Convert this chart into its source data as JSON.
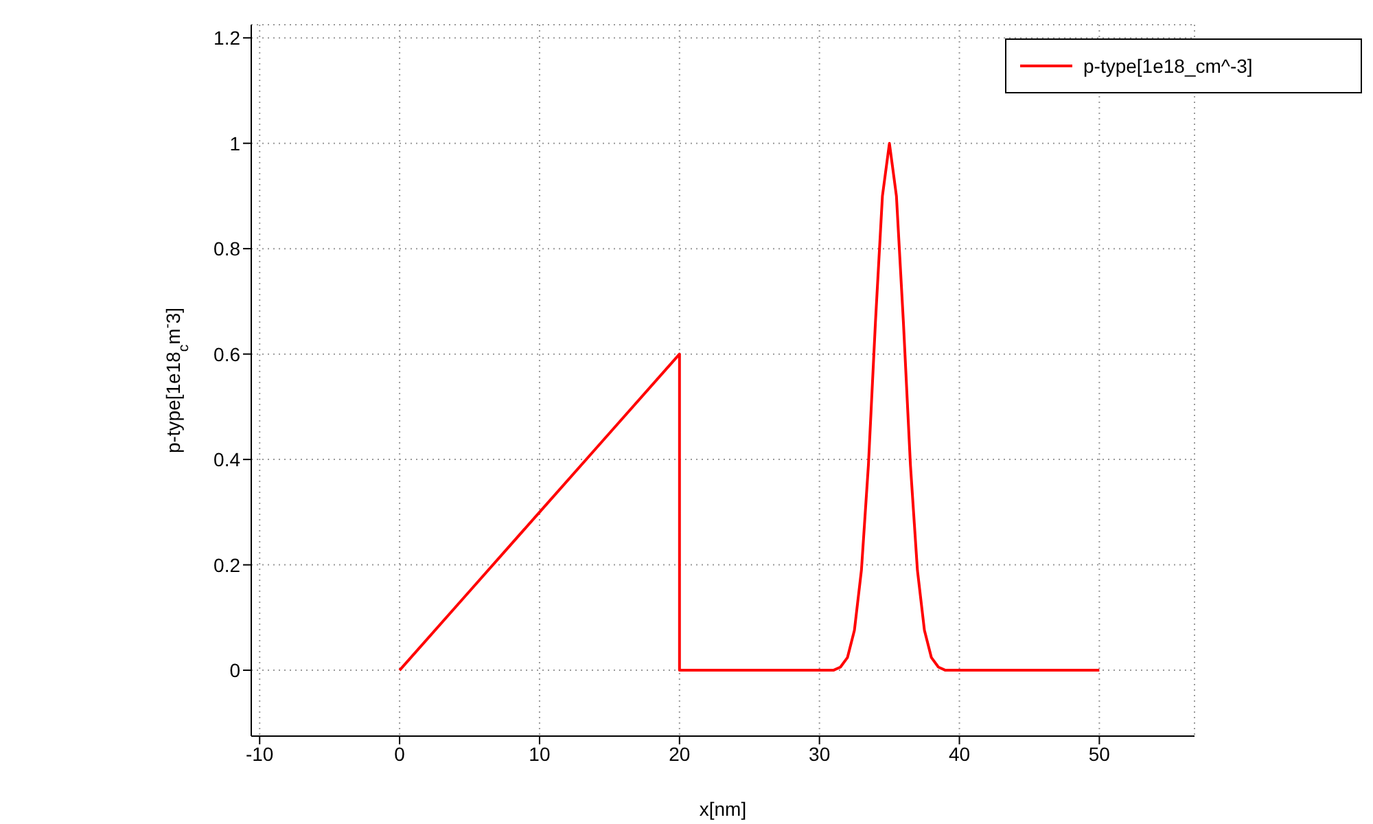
{
  "chart_data": {
    "type": "line",
    "xlabel": "x[nm]",
    "ylabel": "p-type[1e18$_{c}$m$^{-}$3]",
    "series": [
      {
        "name": "p-type[1e18_cm^-3]",
        "color": "#ff0000",
        "x": [
          0,
          5,
          10,
          15,
          20,
          20,
          25,
          30,
          31,
          31.5,
          32,
          32.5,
          33,
          33.5,
          34,
          34.5,
          35,
          35.5,
          36,
          36.5,
          37,
          37.5,
          38,
          38.5,
          39,
          40,
          45,
          50
        ],
        "values": [
          0,
          0.15,
          0.3,
          0.45,
          0.6,
          0,
          0,
          0,
          0,
          0.006,
          0.024,
          0.076,
          0.19,
          0.39,
          0.66,
          0.9,
          1,
          0.9,
          0.66,
          0.39,
          0.19,
          0.076,
          0.024,
          0.006,
          0,
          0,
          0,
          0
        ]
      }
    ],
    "xlim": [
      -10.6,
      56.8
    ],
    "xticks": [
      -10,
      0,
      10,
      20,
      30,
      40,
      50
    ],
    "ylim": [
      -0.125,
      1.225
    ],
    "yticks": [
      0,
      0.2,
      0.4,
      0.6,
      0.8,
      1,
      1.2
    ],
    "grid": true,
    "legend": "top right",
    "line_style": "solid",
    "marker": "none"
  }
}
